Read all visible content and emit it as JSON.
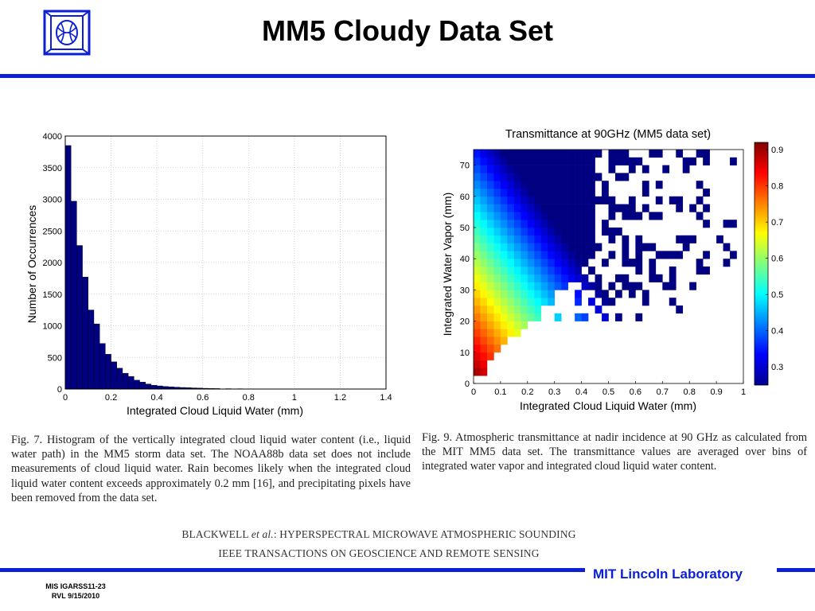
{
  "slide": {
    "title": "MM5 Cloudy Data Set",
    "lab": "MIT Lincoln Laboratory",
    "footer_line1": "MIS IGARSS11-23",
    "footer_line2": "RVL 9/15/2010",
    "reference_line1_author": "BLACKWELL",
    "reference_line1_etal": "et al.",
    "reference_line1_rest": ": HYPERSPECTRAL MICROWAVE ATMOSPHERIC SOUNDING",
    "reference_line2": "IEEE TRANSACTIONS ON GEOSCIENCE AND REMOTE SENSING",
    "fig7_caption": "Fig. 7.    Histogram of the vertically integrated cloud liquid water content (i.e., liquid water path) in the MM5 storm data set. The NOAA88b data set does not include measurements of cloud liquid water. Rain becomes likely when the integrated cloud liquid water content exceeds approximately 0.2 mm [16], and precipitating pixels have been removed from the data set.",
    "fig9_caption": "Fig. 9.    Atmospheric transmittance at nadir incidence at 90 GHz as calculated from the MIT MM5 data set. The transmittance values are averaged over bins of integrated water vapor and integrated cloud liquid water content.",
    "colors": {
      "accent_blue": "#0a1fd6",
      "bar_fill": "#000080"
    }
  },
  "chart_data": [
    {
      "type": "bar",
      "title": "",
      "xlabel": "Integrated Cloud Liquid Water (mm)",
      "ylabel": "Number of Occurrences",
      "xlim": [
        0,
        1.4
      ],
      "ylim": [
        0,
        4000
      ],
      "grid": true,
      "bin_width": 0.025,
      "x_ticks": [
        "0",
        "0.2",
        "0.4",
        "0.6",
        "0.8",
        "1",
        "1.2",
        "1.4"
      ],
      "y_ticks": [
        "0",
        "500",
        "1000",
        "1500",
        "2000",
        "2500",
        "3000",
        "3500",
        "4000"
      ],
      "bin_starts": [
        0,
        0.025,
        0.05,
        0.075,
        0.1,
        0.125,
        0.15,
        0.175,
        0.2,
        0.225,
        0.25,
        0.275,
        0.3,
        0.325,
        0.35,
        0.375,
        0.4,
        0.425,
        0.45,
        0.475,
        0.5,
        0.525,
        0.55,
        0.575,
        0.6,
        0.625,
        0.65,
        0.7,
        0.75,
        0.8,
        0.9,
        1.0,
        1.35
      ],
      "values": [
        3850,
        2970,
        2270,
        1770,
        1250,
        1030,
        720,
        550,
        430,
        330,
        250,
        200,
        140,
        110,
        80,
        60,
        50,
        40,
        35,
        30,
        25,
        22,
        18,
        15,
        12,
        10,
        8,
        6,
        5,
        4,
        3,
        2,
        1
      ]
    },
    {
      "type": "heatmap",
      "title": "Transmittance at 90GHz (MM5 data set)",
      "xlabel": "Integrated Cloud Liquid Water (mm)",
      "ylabel": "Integrated Water Vapor (mm)",
      "xlim": [
        0,
        1
      ],
      "ylim": [
        0,
        75
      ],
      "x_ticks": [
        "0",
        "0.1",
        "0.2",
        "0.3",
        "0.4",
        "0.5",
        "0.6",
        "0.7",
        "0.8",
        "0.9",
        "1"
      ],
      "y_ticks": [
        "0",
        "10",
        "20",
        "30",
        "40",
        "50",
        "60",
        "70"
      ],
      "colorbar_range": [
        0.25,
        0.92
      ],
      "colorbar_ticks": [
        "0.3",
        "0.4",
        "0.5",
        "0.6",
        "0.7",
        "0.8",
        "0.9"
      ],
      "colormap": "jet",
      "bin_size_x": 0.025,
      "bin_size_y": 2.5,
      "approximation": "transmittance ≈ 0.90 − 0.95·CLW − 0.0078·(WV − 3) for populated bins",
      "populated_region": "WV from 2.5 to 75 mm; CLW extent grows from ~0.05 mm at 5 mm WV to ~0.45 mm at 40+ mm WV; sparse scattered cells out to CLW ~0.95 mm"
    }
  ]
}
